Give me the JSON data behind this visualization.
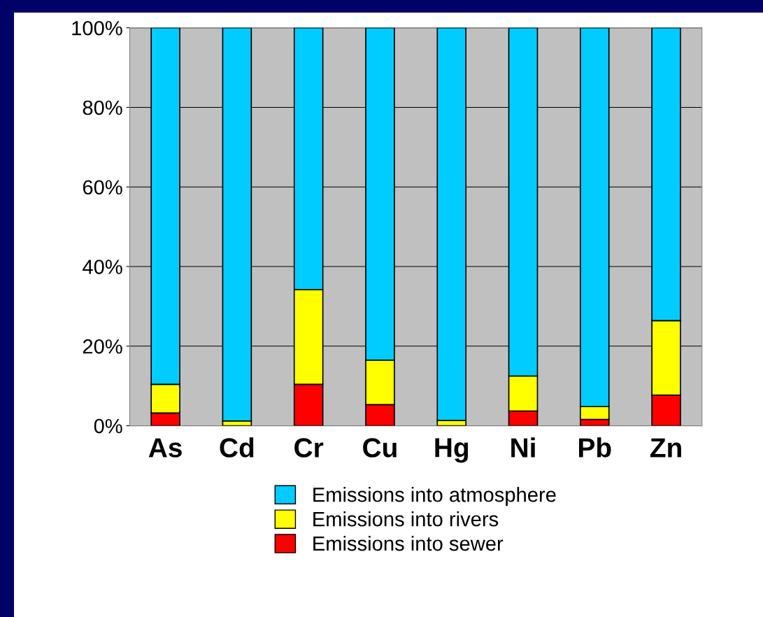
{
  "chart_data": {
    "type": "bar",
    "stacked": true,
    "categories": [
      "As",
      "Cd",
      "Cr",
      "Cu",
      "Hg",
      "Ni",
      "Pb",
      "Zn"
    ],
    "series": [
      {
        "name": "Emissions into sewer",
        "color": "#ff0000",
        "values": [
          3.2,
          null,
          10.4,
          5.3,
          null,
          3.7,
          1.6,
          7.7
        ]
      },
      {
        "name": "Emissions into rivers",
        "color": "#ffff00",
        "values": [
          7.2,
          1.2,
          23.8,
          11.2,
          1.3,
          8.8,
          3.2,
          18.7
        ]
      },
      {
        "name": "Emissions into atmosphere",
        "color": "#00ccff",
        "values": [
          89.6,
          98.8,
          65.8,
          83.5,
          98.7,
          87.5,
          95.2,
          73.6
        ]
      }
    ],
    "ylim": [
      0,
      100
    ],
    "yticks": [
      {
        "value": 0,
        "label": "0%"
      },
      {
        "value": 20,
        "label": "20%"
      },
      {
        "value": 40,
        "label": "40%"
      },
      {
        "value": 60,
        "label": "60%"
      },
      {
        "value": 80,
        "label": "80%"
      },
      {
        "value": 100,
        "label": "100%"
      }
    ],
    "grid": "y",
    "legend": "bottom"
  }
}
